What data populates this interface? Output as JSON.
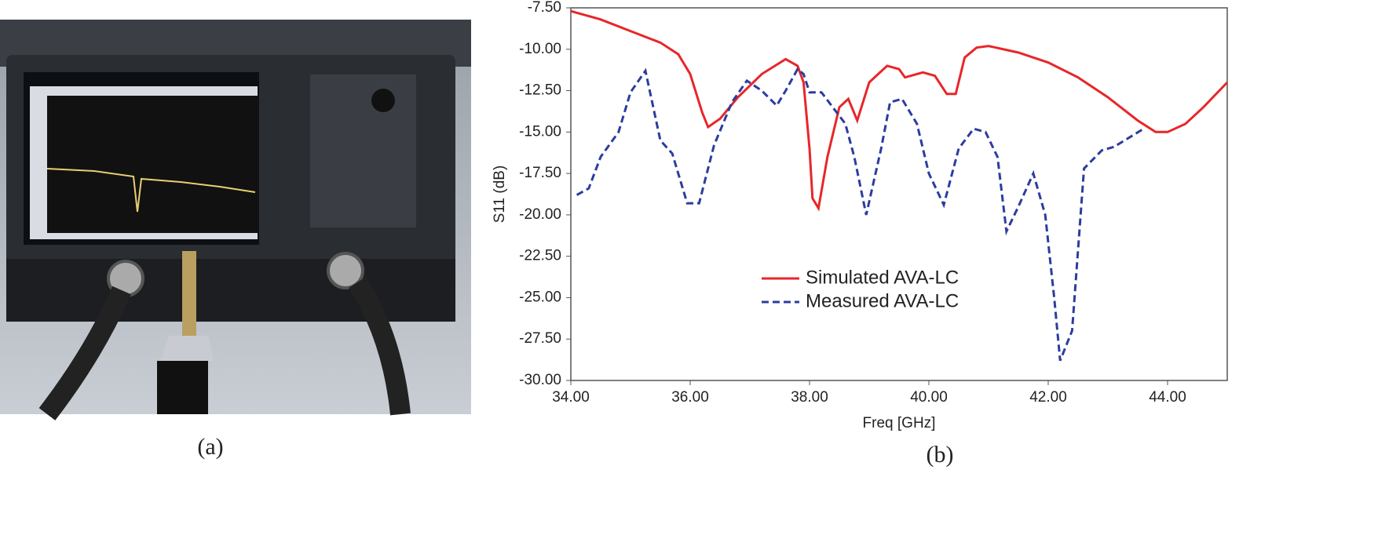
{
  "captions": [
    "(a)",
    "(b)"
  ],
  "chart_data": {
    "type": "line",
    "xlabel": "Freq [GHz]",
    "ylabel": "S11 (dB)",
    "xlim": [
      34,
      45
    ],
    "xticks": [
      {
        "value": 34,
        "label": "34.00"
      },
      {
        "value": 36,
        "label": "36.00"
      },
      {
        "value": 38,
        "label": "38.00"
      },
      {
        "value": 40,
        "label": "40.00"
      },
      {
        "value": 42,
        "label": "42.00"
      },
      {
        "value": 44,
        "label": "44.00"
      }
    ],
    "ylim": [
      -30,
      -7.5
    ],
    "yticks": [
      {
        "value": -7.5,
        "label": "-7.50"
      },
      {
        "value": -10,
        "label": "-10.00"
      },
      {
        "value": -12.5,
        "label": "-12.50"
      },
      {
        "value": -15,
        "label": "-15.00"
      },
      {
        "value": -17.5,
        "label": "-17.50"
      },
      {
        "value": -20,
        "label": "-20.00"
      },
      {
        "value": -22.5,
        "label": "-22.50"
      },
      {
        "value": -25,
        "label": "-25.00"
      },
      {
        "value": -27.5,
        "label": "-27.50"
      },
      {
        "value": -30,
        "label": "-30.00"
      }
    ],
    "grid": false,
    "legend": "center",
    "series": [
      {
        "name": "Simulated AVA-LC",
        "color": "#e8262a",
        "style": "solid",
        "x": [
          34.0,
          34.5,
          35.0,
          35.5,
          35.8,
          36.0,
          36.2,
          36.3,
          36.5,
          36.8,
          37.2,
          37.6,
          37.8,
          37.9,
          38.0,
          38.05,
          38.15,
          38.3,
          38.5,
          38.65,
          38.8,
          39.0,
          39.3,
          39.5,
          39.6,
          39.9,
          40.1,
          40.3,
          40.45,
          40.6,
          40.8,
          41.0,
          41.5,
          42.0,
          42.5,
          43.0,
          43.5,
          43.8,
          44.0,
          44.3,
          44.6,
          45.0
        ],
        "values": [
          -7.7,
          -8.2,
          -8.9,
          -9.6,
          -10.3,
          -11.5,
          -13.8,
          -14.7,
          -14.2,
          -12.9,
          -11.5,
          -10.6,
          -11.0,
          -12.0,
          -16.0,
          -19.0,
          -19.6,
          -16.5,
          -13.5,
          -13.0,
          -14.3,
          -12.0,
          -11.0,
          -11.2,
          -11.7,
          -11.4,
          -11.6,
          -12.7,
          -12.7,
          -10.5,
          -9.9,
          -9.8,
          -10.2,
          -10.8,
          -11.7,
          -12.9,
          -14.3,
          -15.0,
          -15.0,
          -14.5,
          -13.5,
          -12.0
        ]
      },
      {
        "name": "Measured AVA-LC",
        "color": "#2b3d9e",
        "style": "dashed",
        "x": [
          34.1,
          34.3,
          34.5,
          34.8,
          35.0,
          35.25,
          35.5,
          35.7,
          35.95,
          36.15,
          36.4,
          36.7,
          36.95,
          37.2,
          37.45,
          37.6,
          37.8,
          37.9,
          38.0,
          38.2,
          38.6,
          38.75,
          38.95,
          39.2,
          39.35,
          39.55,
          39.8,
          40.0,
          40.25,
          40.5,
          40.75,
          40.95,
          41.15,
          41.3,
          41.5,
          41.75,
          41.95,
          42.1,
          42.2,
          42.4,
          42.6,
          42.9,
          43.1,
          43.6
        ],
        "values": [
          -18.8,
          -18.4,
          -16.5,
          -15.0,
          -12.6,
          -11.3,
          -15.5,
          -16.3,
          -19.3,
          -19.3,
          -15.8,
          -13.2,
          -11.9,
          -12.5,
          -13.4,
          -12.5,
          -11.2,
          -11.5,
          -12.6,
          -12.6,
          -14.5,
          -16.5,
          -20.0,
          -16.0,
          -13.2,
          -13.0,
          -14.5,
          -17.5,
          -19.4,
          -16.0,
          -14.8,
          -15.0,
          -16.5,
          -21.0,
          -19.5,
          -17.5,
          -20.0,
          -25.0,
          -28.8,
          -27.0,
          -17.2,
          -16.1,
          -15.9,
          -14.8
        ]
      }
    ]
  }
}
